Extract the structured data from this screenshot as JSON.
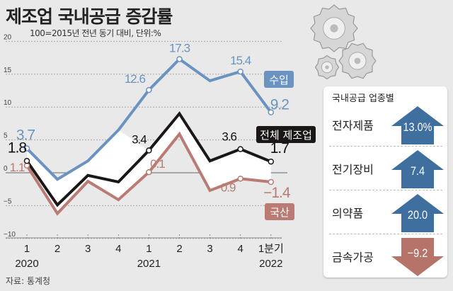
{
  "header": {
    "title": "제조업 국내공급 증감률",
    "subtitle": "100=2015년 전년 동기 대비, 단위:%"
  },
  "source": "자료: 통계청",
  "colors": {
    "import": "#6b93c1",
    "total": "#1b1716",
    "domestic": "#b97b73",
    "arrow_up": "#3f6f9f",
    "arrow_down": "#b5736a",
    "background": "#e9e9e9"
  },
  "chart_data": {
    "type": "line",
    "categories": [
      "1",
      "2",
      "3",
      "4",
      "1",
      "2",
      "3",
      "4",
      "1분기"
    ],
    "year_labels": [
      "2020",
      "2021",
      "2022"
    ],
    "ylim": [
      -10,
      20
    ],
    "yticks": [
      "20",
      "15",
      "10",
      "5",
      "0",
      "−5",
      "−10"
    ],
    "ytick_values": [
      20,
      15,
      10,
      5,
      0,
      -5,
      -10
    ],
    "grid": "dashed horizontal",
    "series": [
      {
        "name": "수입",
        "key": "import",
        "values": [
          3.7,
          -1.0,
          1.8,
          6.5,
          12.6,
          17.3,
          14.0,
          15.4,
          9.2
        ],
        "labels": [
          "3.7",
          null,
          null,
          null,
          "12.6",
          "17.3",
          null,
          "15.4",
          "9.2"
        ]
      },
      {
        "name": "전체 제조업",
        "key": "total",
        "values": [
          1.8,
          -4.9,
          -0.4,
          -1.4,
          3.4,
          9.0,
          1.8,
          3.6,
          1.7
        ],
        "labels": [
          "1.8",
          null,
          null,
          null,
          "3.4",
          null,
          null,
          "3.6",
          "1.7"
        ]
      },
      {
        "name": "국산",
        "key": "domestic",
        "values": [
          1.1,
          -6.2,
          -1.3,
          -4.1,
          0.1,
          5.9,
          -2.7,
          -0.9,
          -1.4
        ],
        "labels": [
          "1.1",
          null,
          null,
          null,
          "0.1",
          null,
          null,
          "−0.9",
          "−1.4"
        ]
      }
    ]
  },
  "panel": {
    "title": "국내공급 업종별",
    "rows": [
      {
        "label": "전자제품",
        "value": "13.0%",
        "direction": "up"
      },
      {
        "label": "전기장비",
        "value": "7.4",
        "direction": "up"
      },
      {
        "label": "의약품",
        "value": "20.0",
        "direction": "up"
      },
      {
        "label": "금속가공",
        "value": "−9.2",
        "direction": "down"
      }
    ]
  },
  "illustration": {
    "icon": "gears-icon"
  }
}
